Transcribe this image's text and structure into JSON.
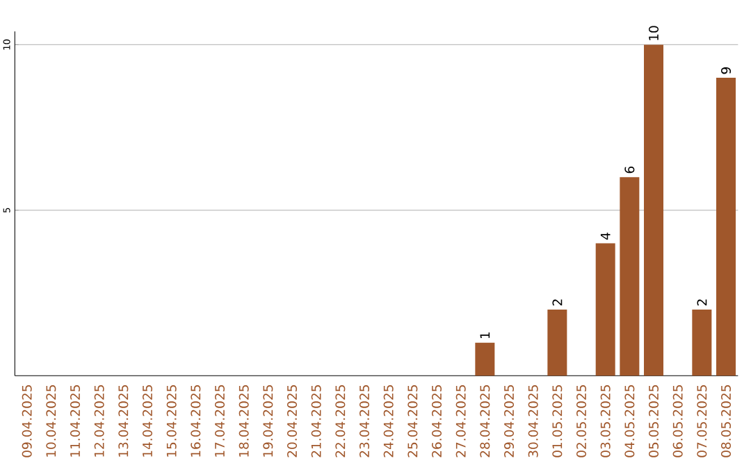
{
  "chart_data": {
    "type": "bar",
    "categories": [
      "09.04.2025",
      "10.04.2025",
      "11.04.2025",
      "12.04.2025",
      "13.04.2025",
      "14.04.2025",
      "15.04.2025",
      "16.04.2025",
      "17.04.2025",
      "18.04.2025",
      "19.04.2025",
      "20.04.2025",
      "21.04.2025",
      "22.04.2025",
      "23.04.2025",
      "24.04.2025",
      "25.04.2025",
      "26.04.2025",
      "27.04.2025",
      "28.04.2025",
      "29.04.2025",
      "30.04.2025",
      "01.05.2025",
      "02.05.2025",
      "03.05.2025",
      "04.05.2025",
      "05.05.2025",
      "06.05.2025",
      "07.05.2025",
      "08.05.2025"
    ],
    "values": [
      0,
      0,
      0,
      0,
      0,
      0,
      0,
      0,
      0,
      0,
      0,
      0,
      0,
      0,
      0,
      0,
      0,
      0,
      0,
      1,
      0,
      0,
      2,
      0,
      4,
      6,
      10,
      0,
      2,
      9
    ],
    "value_labels": [
      null,
      null,
      null,
      null,
      null,
      null,
      null,
      null,
      null,
      null,
      null,
      null,
      null,
      null,
      null,
      null,
      null,
      null,
      null,
      "1",
      null,
      null,
      "2",
      null,
      "4",
      "6",
      "10",
      null,
      "2",
      "9"
    ],
    "color": "#a0572b",
    "ylim": [
      0,
      10.4
    ],
    "yticks": [
      5,
      10
    ],
    "grid": "y"
  }
}
